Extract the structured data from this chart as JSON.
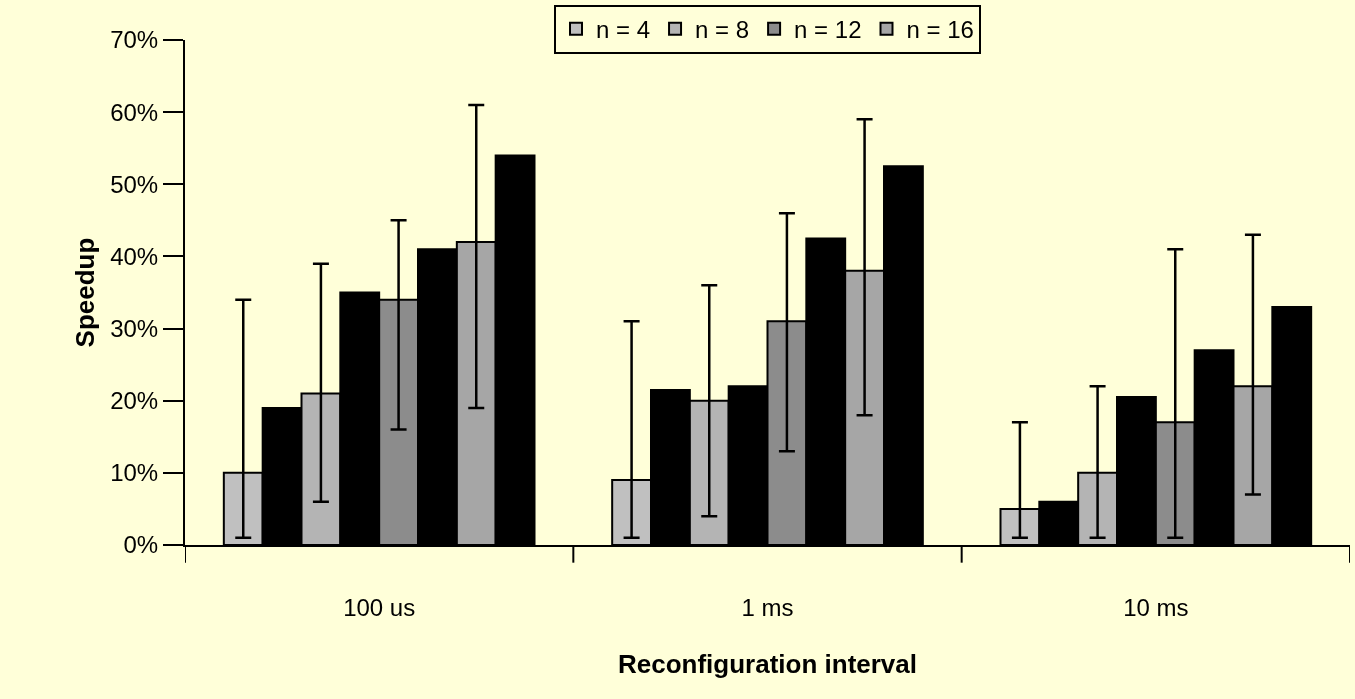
{
  "chart_data": {
    "type": "bar",
    "xlabel": "Reconfiguration interval",
    "ylabel": "Speedup",
    "categories": [
      "100 us",
      "1 ms",
      "10 ms"
    ],
    "series": [
      {
        "name": "n = 4",
        "color": "#c0c0c0",
        "values": [
          10,
          9,
          5
        ],
        "errors": [
          [
            1,
            34
          ],
          [
            1,
            31
          ],
          [
            1,
            17
          ]
        ]
      },
      {
        "color": "#000000",
        "values": [
          19,
          21.5,
          6
        ]
      },
      {
        "name": "n = 8",
        "color": "#b4b4b4",
        "values": [
          21,
          20,
          10
        ],
        "errors": [
          [
            6,
            39
          ],
          [
            4,
            36
          ],
          [
            1,
            22
          ]
        ]
      },
      {
        "color": "#000000",
        "values": [
          35,
          22,
          20.5
        ]
      },
      {
        "name": "n = 12",
        "color": "#8c8c8c",
        "values": [
          34,
          31,
          17
        ],
        "errors": [
          [
            16,
            45
          ],
          [
            13,
            46
          ],
          [
            1,
            41
          ]
        ]
      },
      {
        "color": "#000000",
        "values": [
          41,
          42.5,
          27
        ]
      },
      {
        "name": "n = 16",
        "color": "#a6a6a6",
        "values": [
          42,
          38,
          22
        ],
        "errors": [
          [
            19,
            61
          ],
          [
            18,
            59
          ],
          [
            7,
            43
          ]
        ]
      },
      {
        "color": "#000000",
        "values": [
          54,
          52.5,
          33
        ]
      }
    ],
    "ylim": [
      0,
      70
    ],
    "yticks": [
      {
        "value": 0,
        "label": "0%"
      },
      {
        "value": 10,
        "label": "10%"
      },
      {
        "value": 20,
        "label": "20%"
      },
      {
        "value": 30,
        "label": "30%"
      },
      {
        "value": 40,
        "label": "40%"
      },
      {
        "value": 50,
        "label": "50%"
      },
      {
        "value": 60,
        "label": "60%"
      },
      {
        "value": 70,
        "label": "70%"
      }
    ],
    "grid": false,
    "legend": "top"
  }
}
